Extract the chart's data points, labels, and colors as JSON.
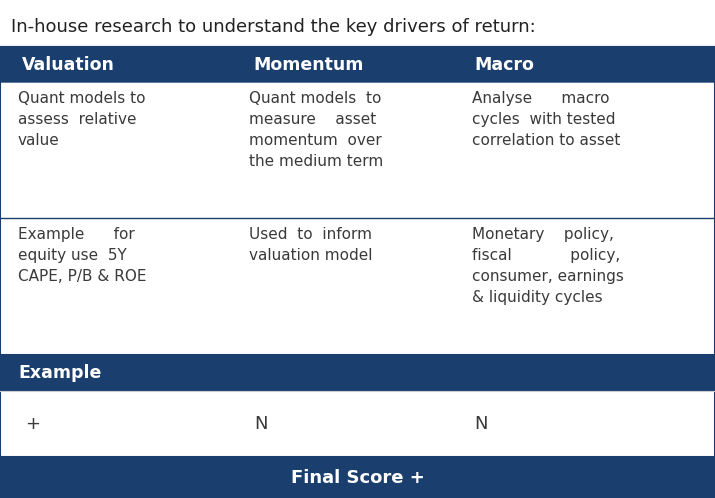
{
  "title": "In-house research to understand the key drivers of return:",
  "header_bg": "#1a3f6f",
  "header_text_color": "#ffffff",
  "body_bg": "#ffffff",
  "body_text_color": "#3a3a3a",
  "example_row_bg": "#1a3f6f",
  "example_row_text_color": "#ffffff",
  "final_score_bg": "#1a3f6f",
  "final_score_text_color": "#ffffff",
  "divider_color": "#1a3f6f",
  "columns": [
    "Valuation",
    "Momentum",
    "Macro"
  ],
  "row1_texts": [
    "Quant models to\nassess  relative\nvalue",
    "Quant models  to\nmeasure    asset\nmomentum  over\nthe medium term",
    "Analyse      macro\ncycles  with tested\ncorrelation to asset"
  ],
  "row2_texts": [
    "Example      for\nequity use  5Y\nCAPE, P/B & ROE",
    "Used  to  inform\nvaluation model",
    "Monetary    policy,\nfiscal            policy,\nconsumer, earnings\n& liquidity cycles"
  ],
  "example_label": "Example",
  "scores": [
    "+",
    "N",
    "N"
  ],
  "final_score": "Final Score +",
  "title_fontsize": 13,
  "header_fontsize": 12.5,
  "body_fontsize": 11,
  "score_fontsize": 13,
  "final_fontsize": 13
}
